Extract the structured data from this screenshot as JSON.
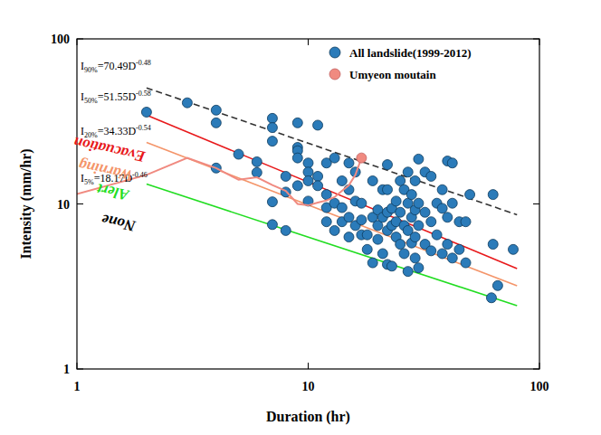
{
  "chart_data": {
    "type": "scatter",
    "x_label": "Duration (hr)",
    "y_label": "Intensity (mm/hr)",
    "log": true,
    "grid": false,
    "legend": "top-right",
    "xlim": [
      1,
      100
    ],
    "ylim": [
      1,
      100
    ],
    "xticks": [
      1,
      10,
      100
    ],
    "yticks": [
      1,
      10,
      100
    ],
    "series": [
      {
        "name": "All landslide(1999-2012)",
        "type": "scatter",
        "color": "#2b7bb9",
        "marker": "circle",
        "x": [
          2,
          3,
          4,
          4,
          4,
          5,
          6,
          6,
          7,
          7,
          7,
          7,
          7,
          8,
          8,
          8,
          9,
          9,
          9,
          9,
          9,
          10,
          10,
          10,
          10,
          11,
          11,
          11,
          12,
          12,
          12,
          12,
          13,
          13,
          13,
          14,
          14,
          14,
          15,
          15,
          15,
          15,
          16,
          16,
          16,
          17,
          17,
          17,
          18,
          18,
          19,
          19,
          19,
          20,
          20,
          20,
          21,
          21,
          21,
          22,
          22,
          22,
          22,
          22,
          23,
          23,
          23,
          24,
          24,
          24,
          25,
          25,
          25,
          26,
          26,
          26,
          27,
          27,
          27,
          27,
          28,
          28,
          28,
          29,
          29,
          29,
          29,
          30,
          30,
          30,
          30,
          32,
          32,
          32,
          34,
          34,
          34,
          36,
          36,
          38,
          38,
          38,
          40,
          40,
          40,
          42,
          42,
          42,
          45,
          45,
          48,
          48,
          50,
          62,
          63,
          63,
          66,
          77
        ],
        "values": [
          36,
          41,
          37,
          31,
          16.5,
          20,
          18,
          15.5,
          33,
          29,
          24,
          10.3,
          7.5,
          11.8,
          6.9,
          14.7,
          31,
          22,
          21,
          19,
          12.9,
          17.7,
          15.6,
          13.8,
          10.4,
          30,
          14.7,
          12.9,
          17.7,
          11.4,
          9.5,
          7.8,
          19,
          10.1,
          6.9,
          13.8,
          9.5,
          7.8,
          17.7,
          12.2,
          8.3,
          6.3,
          15.6,
          10.4,
          7.4,
          10.1,
          8,
          6.5,
          6.5,
          5.3,
          8.3,
          4.4,
          13.8,
          9.2,
          7.4,
          6.1,
          8.3,
          5,
          12.2,
          17.3,
          12.2,
          8.9,
          6.9,
          4.3,
          9.4,
          7.4,
          4.2,
          10.4,
          7.8,
          6.3,
          13.8,
          8.9,
          5.7,
          12.2,
          7.4,
          5,
          15.6,
          10.1,
          6.9,
          3.9,
          11.4,
          8.3,
          5.8,
          13.8,
          9.2,
          6.3,
          4.7,
          18.7,
          10.1,
          7.4,
          4.1,
          15.6,
          8.9,
          5.7,
          14.7,
          7.8,
          5.2,
          10.1,
          6.5,
          12.2,
          9.4,
          5,
          18.2,
          8.3,
          5.7,
          17.7,
          10.1,
          4.7,
          7.8,
          5.3,
          7.8,
          4.4,
          11.4,
          2.7,
          5.7,
          11.4,
          3.2,
          5.3
        ]
      },
      {
        "name": "Umyeon moutain",
        "type": "line",
        "color": "#f08a80",
        "marker": "circle-end",
        "line_style": "solid",
        "x": [
          1,
          2,
          3,
          4,
          5,
          6,
          7,
          8,
          9,
          10,
          11,
          12,
          13,
          14,
          15,
          16,
          17
        ],
        "values": [
          11.5,
          15,
          19,
          16.5,
          14,
          14.5,
          13,
          12,
          10,
          9.8,
          10.2,
          10.5,
          11,
          12,
          13,
          15,
          19
        ]
      }
    ],
    "thresholds": [
      {
        "label": {
          "base": "I",
          "sub": "90%",
          "mid": "=70.49D",
          "sup": "-0.48"
        },
        "color": "#333333",
        "line_style": "dashed",
        "x": [
          2,
          80
        ],
        "values": [
          50.5,
          8.6
        ]
      },
      {
        "label": {
          "base": "I",
          "sub": "50%",
          "mid": "=51.55D",
          "sup": "-0.58"
        },
        "color": "#e8191b",
        "line_style": "solid",
        "x": [
          2,
          80
        ],
        "values": [
          34.5,
          4.06
        ]
      },
      {
        "label": {
          "base": "I",
          "sub": "20%",
          "mid": "=34.33D",
          "sup": "-0.54"
        },
        "color": "#f4956a",
        "line_style": "solid",
        "x": [
          2,
          80
        ],
        "values": [
          23.6,
          3.19
        ]
      },
      {
        "label": {
          "base": "I",
          "sub": "5%",
          "mid": "=18.17D",
          "sup": "-0.46"
        },
        "color": "#22dd22",
        "line_style": "solid",
        "x": [
          2,
          80
        ],
        "values": [
          13.2,
          2.42
        ]
      }
    ],
    "annotations": [
      {
        "text": "Evacuation",
        "color": "#e8191b"
      },
      {
        "text": "Warning",
        "color": "#f4956a"
      },
      {
        "text": "Alert",
        "color": "#22dd22"
      },
      {
        "text": "None",
        "color": "#000000"
      }
    ]
  }
}
